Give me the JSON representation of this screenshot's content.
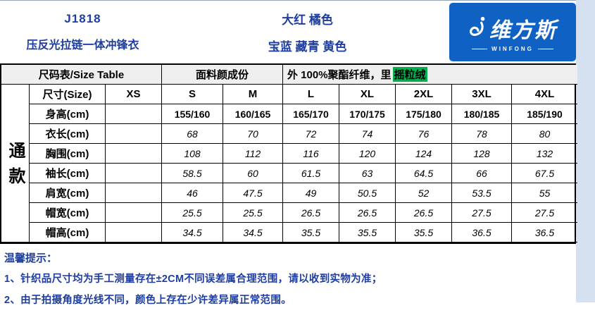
{
  "header": {
    "product_code": "J1818",
    "product_name": "压反光拉链一体冲锋衣",
    "color_line1": "大红 橘色",
    "color_line2": "宝蓝 藏青 黄色",
    "logo": {
      "brand": "维方斯",
      "subbrand": "WINFONG"
    }
  },
  "subheader": {
    "size_table_label": "尺码表/Size Table",
    "fabric_label": "面料颜成份",
    "fabric_prefix": "外 100%聚酯纤维，里",
    "fabric_highlight": "摇粒绒"
  },
  "table": {
    "group_label": "通款",
    "size_row_label": "尺寸(Size)",
    "sizes": [
      "XS",
      "S",
      "M",
      "L",
      "XL",
      "2XL",
      "3XL",
      "4XL"
    ],
    "rows": [
      {
        "label": "身高(cm)",
        "bold": true,
        "values": [
          "",
          "155/160",
          "160/165",
          "165/170",
          "170/175",
          "175/180",
          "180/185",
          "185/190"
        ]
      },
      {
        "label": "衣长(cm)",
        "bold": false,
        "values": [
          "",
          "68",
          "70",
          "72",
          "74",
          "76",
          "78",
          "80"
        ]
      },
      {
        "label": "胸围(cm)",
        "bold": false,
        "values": [
          "",
          "108",
          "112",
          "116",
          "120",
          "124",
          "128",
          "132"
        ]
      },
      {
        "label": "袖长(cm)",
        "bold": false,
        "values": [
          "",
          "58.5",
          "60",
          "61.5",
          "63",
          "64.5",
          "66",
          "67.5"
        ]
      },
      {
        "label": "肩宽(cm)",
        "bold": false,
        "values": [
          "",
          "46",
          "47.5",
          "49",
          "50.5",
          "52",
          "53.5",
          "55"
        ]
      },
      {
        "label": "帽宽(cm)",
        "bold": false,
        "values": [
          "",
          "25.5",
          "25.5",
          "26.5",
          "26.5",
          "26.5",
          "27.5",
          "27.5"
        ]
      },
      {
        "label": "帽高(cm)",
        "bold": false,
        "values": [
          "",
          "34.5",
          "34.5",
          "35.5",
          "35.5",
          "35.5",
          "36.5",
          "36.5"
        ]
      }
    ]
  },
  "notes": {
    "title": "温馨提示：",
    "line1": "1、针织品尺寸均为手工测量存在±2CM不同误差属合理范围，请以收到实物为准；",
    "line2": "2、由于拍摄角度光线不同，颜色上存在少许差异属正常范围。"
  },
  "colors": {
    "header_blue": "#1e3da0",
    "logo_bg": "#0f62c4",
    "highlight_green": "#00b050",
    "subheader_bg": "#efefef",
    "right_strip_bg": "#d5e0f0"
  }
}
